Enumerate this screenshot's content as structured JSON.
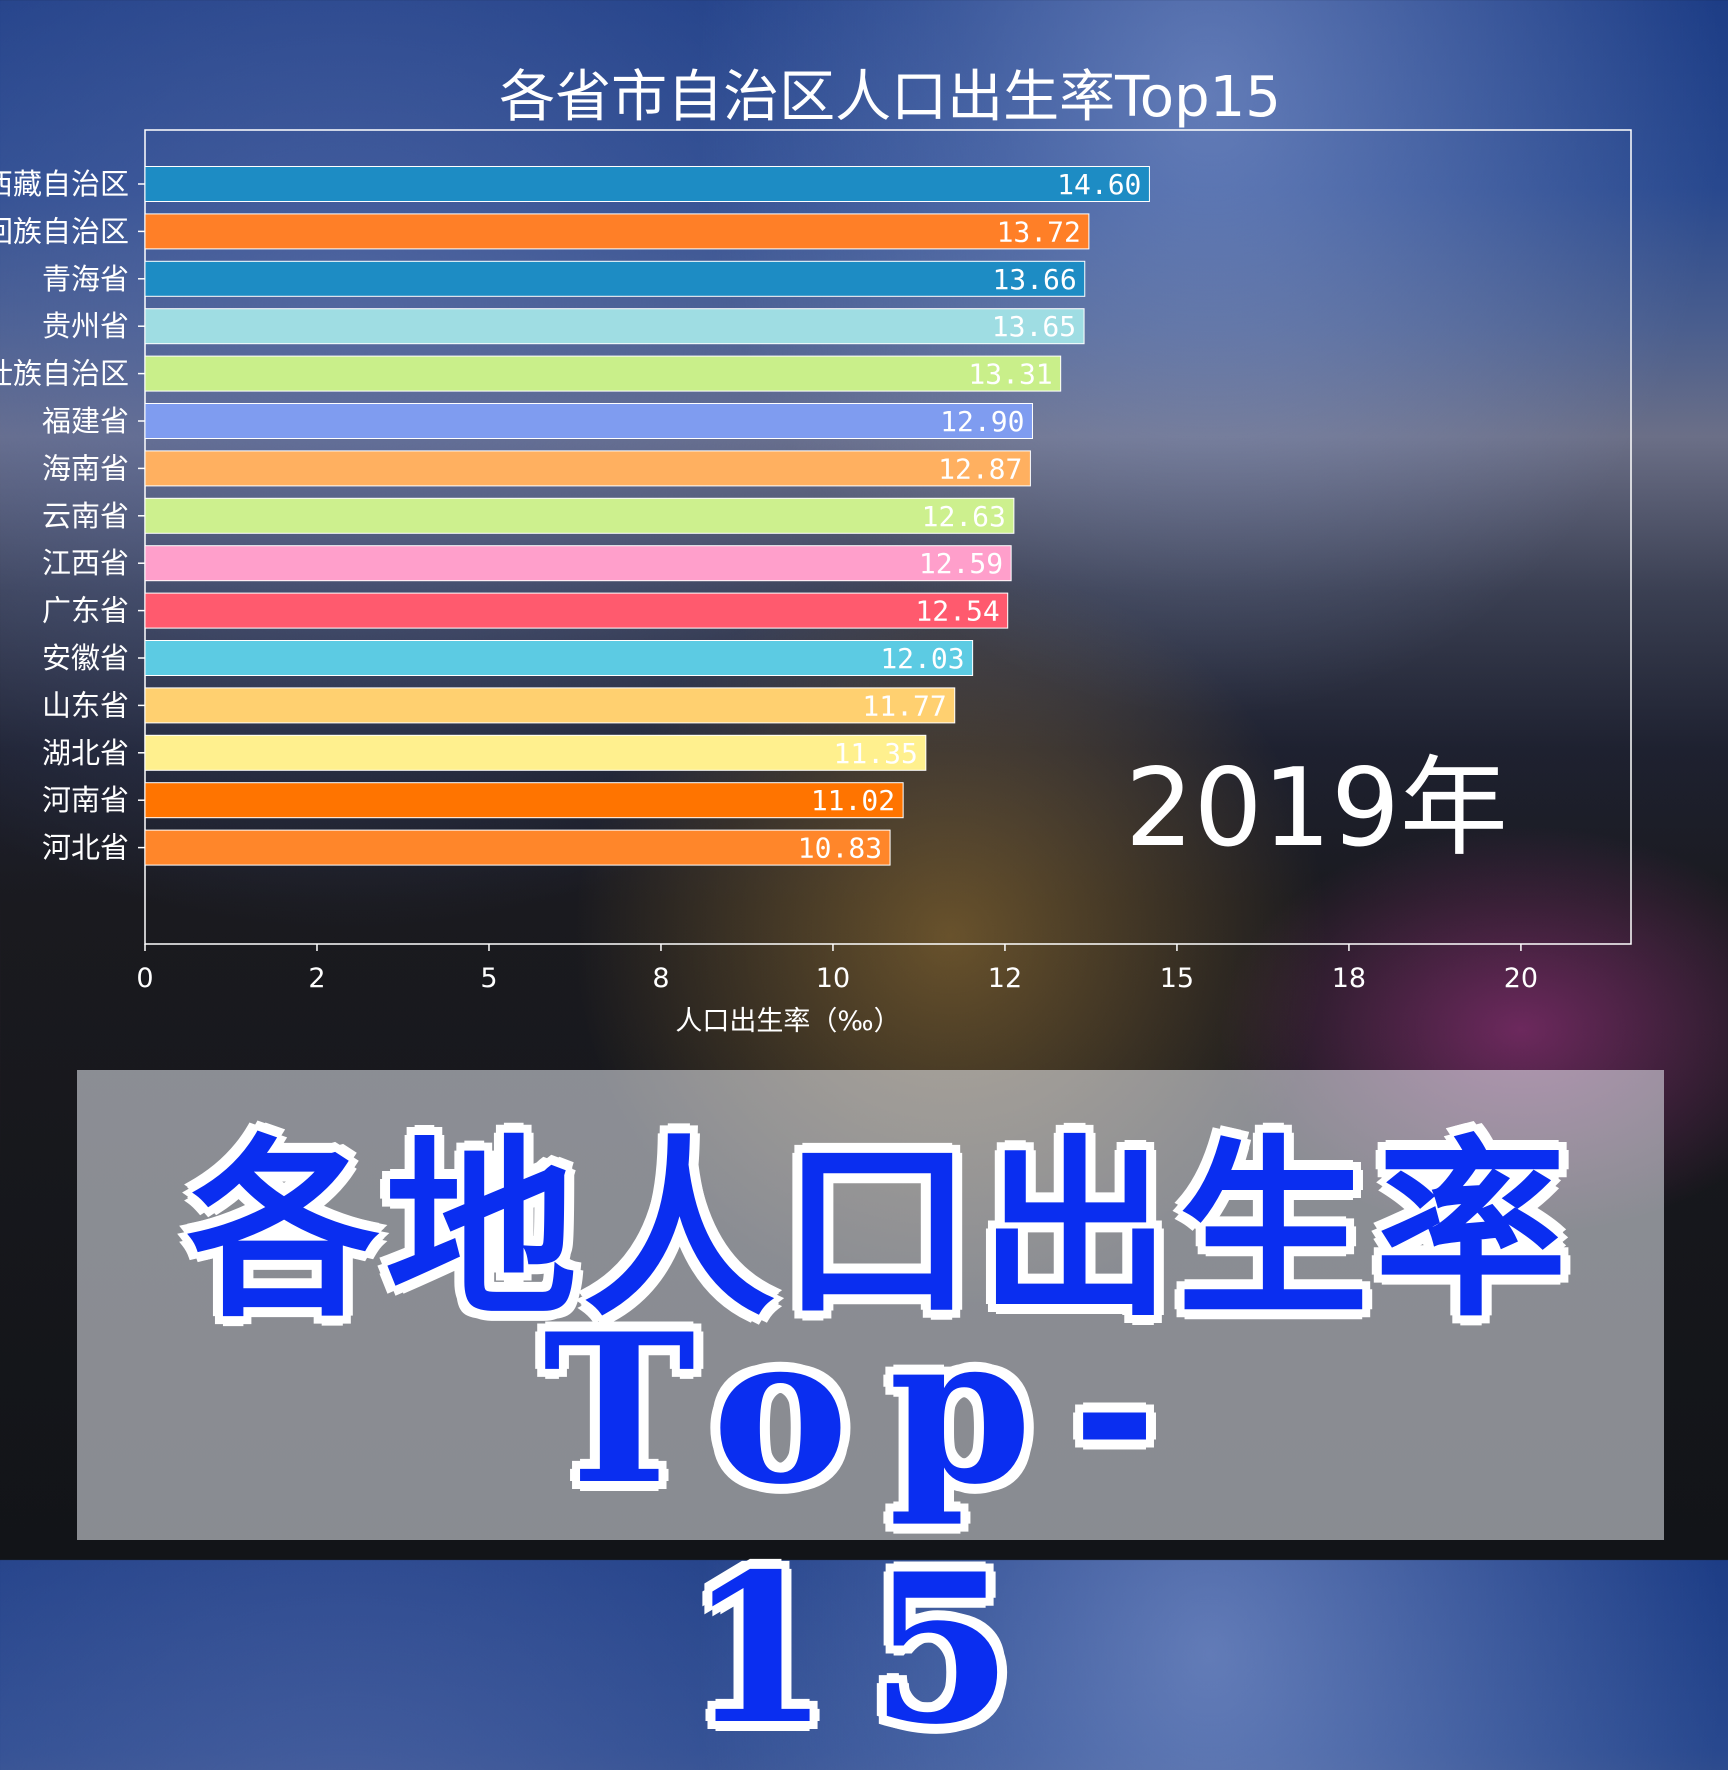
{
  "title": "各省市自治区人口出生率Top15",
  "overlay_text": {
    "line1": "各地人口出生率",
    "line2": "Top-15"
  },
  "year_label": "2019年",
  "chart_data": {
    "type": "bar",
    "orientation": "horizontal",
    "title": "各省市自治区人口出生率Top15",
    "xlabel": "人口出生率（‰）",
    "ylabel": "",
    "xlim": [
      0,
      21.6
    ],
    "xticks": [
      0,
      2.5,
      5,
      7.5,
      10,
      12.5,
      15,
      17.5,
      20
    ],
    "xtick_labels": [
      "0",
      "2",
      "5",
      "8",
      "10",
      "12",
      "15",
      "18",
      "20"
    ],
    "grid": false,
    "categories": [
      "西藏自治区",
      "宁夏回族自治区",
      "青海省",
      "贵州省",
      "广西壮族自治区",
      "福建省",
      "海南省",
      "云南省",
      "江西省",
      "广东省",
      "安徽省",
      "山东省",
      "湖北省",
      "河南省",
      "河北省"
    ],
    "values": [
      14.6,
      13.72,
      13.66,
      13.65,
      13.31,
      12.9,
      12.87,
      12.63,
      12.59,
      12.54,
      12.03,
      11.77,
      11.35,
      11.02,
      10.83
    ],
    "value_labels": [
      "14.60",
      "13.72",
      "13.66",
      "13.65",
      "13.31",
      "12.90",
      "12.87",
      "12.63",
      "12.59",
      "12.54",
      "12.03",
      "11.77",
      "11.35",
      "11.02",
      "10.83"
    ],
    "colors": [
      "#1d8cc4",
      "#ff7f27",
      "#1d8cc4",
      "#9fdde3",
      "#c9ef8a",
      "#7f9cf0",
      "#ffb060",
      "#cdf08e",
      "#ff9fcb",
      "#ff5a6e",
      "#5ccbe3",
      "#ffd070",
      "#fff08e",
      "#ff7400",
      "#ff862a"
    ]
  }
}
